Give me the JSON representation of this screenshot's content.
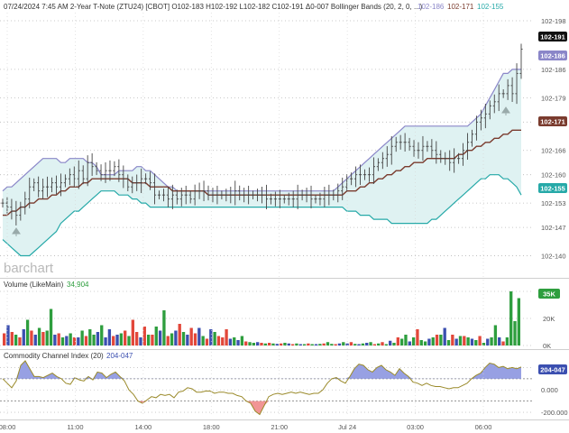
{
  "header": {
    "text": "07/24/2024 7:45 AM 2-Year T-Note (ZTU24) [CBOT] O102-183 H102-192 L102-182 C102-191 Δ0-007 Bollinger Bands (20, 2, 0, ...)",
    "upper_value": "102-186",
    "middle_value": "102-171",
    "lower_value": "102-155"
  },
  "watermark": "barchart",
  "colors": {
    "bb_upper": "#8a86c8",
    "bb_middle": "#7a3b2e",
    "bb_lower": "#26a9a8",
    "bb_fill": "#dff2f2",
    "price": "#444444",
    "vol_up": "#2e9e3e",
    "vol_down": "#e2473a",
    "vol_neutral": "#3b4fb0",
    "cci_line": "#9a8a2a",
    "cci_pos_fill": "#8c96e0",
    "cci_neg_fill": "#f08a8a",
    "price_badge": "#111111",
    "upper_badge": "#8a86c8",
    "middle_badge": "#7a3b2e",
    "lower_badge": "#26a9a8",
    "volume_badge": "#2e9e3e",
    "cci_badge": "#3b4fb0"
  },
  "chart_data": [
    {
      "panel": "price",
      "type": "ohlc-with-bollinger",
      "y_ticks": [
        "102-198",
        "102-186",
        "102-179",
        "102-173",
        "102-166",
        "102-160",
        "102-153",
        "102-147",
        "102-140"
      ],
      "y_tick_values": [
        102.198,
        102.186,
        102.179,
        102.173,
        102.166,
        102.16,
        102.153,
        102.147,
        102.14
      ],
      "ylim": [
        102.135,
        102.2
      ],
      "x_ticks": [
        "08:00",
        "11:00",
        "14:00",
        "18:00",
        "21:00",
        "Jul 24",
        "03:00",
        "06:00"
      ],
      "badges": {
        "last": "102-191",
        "upper": "102-186",
        "middle": "102-171",
        "lower": "102-155"
      },
      "close": [
        102.153,
        102.152,
        102.151,
        102.15,
        102.152,
        102.154,
        102.157,
        102.158,
        102.156,
        102.157,
        102.157,
        102.158,
        102.157,
        102.158,
        102.159,
        102.16,
        102.159,
        102.161,
        102.159,
        102.163,
        102.162,
        102.161,
        102.16,
        102.161,
        102.161,
        102.162,
        102.16,
        102.159,
        102.157,
        102.158,
        102.158,
        102.159,
        102.159,
        102.158,
        102.155,
        102.155,
        102.155,
        102.154,
        102.155,
        102.154,
        102.155,
        102.155,
        102.154,
        102.156,
        102.156,
        102.156,
        102.155,
        102.155,
        102.155,
        102.155,
        102.155,
        102.155,
        102.156,
        102.155,
        102.155,
        102.155,
        102.155,
        102.155,
        102.155,
        102.154,
        102.154,
        102.154,
        102.154,
        102.154,
        102.154,
        102.154,
        102.155,
        102.155,
        102.155,
        102.154,
        102.154,
        102.154,
        102.155,
        102.155,
        102.155,
        102.156,
        102.157,
        102.159,
        102.159,
        102.16,
        102.16,
        102.16,
        102.16,
        102.162,
        102.163,
        102.164,
        102.165,
        102.167,
        102.168,
        102.168,
        102.168,
        102.167,
        102.166,
        102.166,
        102.167,
        102.167,
        102.166,
        102.165,
        102.164,
        102.164,
        102.163,
        102.164,
        102.164,
        102.166,
        102.168,
        102.17,
        102.173,
        102.174,
        102.175,
        102.177,
        102.178,
        102.18,
        102.18,
        102.182,
        102.18,
        102.185,
        102.191
      ],
      "bb_upper": [
        102.156,
        102.157,
        102.157,
        102.158,
        102.159,
        102.16,
        102.161,
        102.162,
        102.163,
        102.164,
        102.164,
        102.164,
        102.164,
        102.163,
        102.163,
        102.164,
        102.164,
        102.164,
        102.164,
        102.163,
        102.163,
        102.162,
        102.16,
        102.16,
        102.16,
        102.16,
        102.161,
        102.161,
        102.161,
        102.161,
        102.162,
        102.162,
        102.161,
        102.161,
        102.16,
        102.159,
        102.158,
        102.157,
        102.157,
        102.156,
        102.156,
        102.156,
        102.156,
        102.156,
        102.156,
        102.156,
        102.156,
        102.156,
        102.156,
        102.156,
        102.156,
        102.156,
        102.156,
        102.156,
        102.156,
        102.156,
        102.156,
        102.156,
        102.156,
        102.156,
        102.156,
        102.156,
        102.156,
        102.156,
        102.156,
        102.156,
        102.156,
        102.156,
        102.156,
        102.156,
        102.156,
        102.156,
        102.156,
        102.156,
        102.156,
        102.157,
        102.158,
        102.159,
        102.16,
        102.161,
        102.162,
        102.163,
        102.164,
        102.165,
        102.166,
        102.167,
        102.168,
        102.169,
        102.17,
        102.171,
        102.172,
        102.172,
        102.172,
        102.172,
        102.172,
        102.172,
        102.172,
        102.172,
        102.172,
        102.172,
        102.172,
        102.172,
        102.172,
        102.172,
        102.172,
        102.173,
        102.174,
        102.175,
        102.177,
        102.179,
        102.181,
        102.183,
        102.185,
        102.185,
        102.186,
        102.186,
        102.186
      ],
      "bb_middle": [
        102.15,
        102.15,
        102.151,
        102.151,
        102.152,
        102.152,
        102.153,
        102.153,
        102.154,
        102.154,
        102.154,
        102.155,
        102.155,
        102.156,
        102.156,
        102.157,
        102.157,
        102.157,
        102.158,
        102.158,
        102.159,
        102.159,
        102.159,
        102.159,
        102.159,
        102.159,
        102.159,
        102.159,
        102.159,
        102.158,
        102.158,
        102.158,
        102.158,
        102.157,
        102.157,
        102.157,
        102.157,
        102.157,
        102.156,
        102.156,
        102.156,
        102.156,
        102.156,
        102.156,
        102.156,
        102.156,
        102.155,
        102.155,
        102.155,
        102.155,
        102.155,
        102.155,
        102.155,
        102.155,
        102.155,
        102.155,
        102.155,
        102.155,
        102.155,
        102.155,
        102.155,
        102.155,
        102.155,
        102.155,
        102.155,
        102.155,
        102.155,
        102.155,
        102.155,
        102.155,
        102.155,
        102.155,
        102.155,
        102.155,
        102.155,
        102.155,
        102.155,
        102.156,
        102.156,
        102.156,
        102.157,
        102.157,
        102.158,
        102.158,
        102.159,
        102.159,
        102.16,
        102.16,
        102.161,
        102.161,
        102.162,
        102.162,
        102.163,
        102.163,
        102.163,
        102.164,
        102.164,
        102.164,
        102.164,
        102.164,
        102.164,
        102.164,
        102.165,
        102.165,
        102.166,
        102.166,
        102.167,
        102.167,
        102.168,
        102.168,
        102.169,
        102.169,
        102.17,
        102.17,
        102.171,
        102.171,
        102.171
      ],
      "bb_lower": [
        102.144,
        102.143,
        102.142,
        102.141,
        102.14,
        102.14,
        102.14,
        102.141,
        102.142,
        102.143,
        102.144,
        102.145,
        102.146,
        102.148,
        102.149,
        102.15,
        102.151,
        102.151,
        102.152,
        102.153,
        102.154,
        102.155,
        102.156,
        102.156,
        102.156,
        102.156,
        102.155,
        102.155,
        102.155,
        102.154,
        102.154,
        102.153,
        102.153,
        102.152,
        102.152,
        102.152,
        102.152,
        102.152,
        102.152,
        102.152,
        102.152,
        102.152,
        102.152,
        102.152,
        102.152,
        102.152,
        102.152,
        102.152,
        102.152,
        102.152,
        102.152,
        102.152,
        102.152,
        102.152,
        102.152,
        102.152,
        102.152,
        102.152,
        102.152,
        102.152,
        102.152,
        102.152,
        102.152,
        102.152,
        102.152,
        102.152,
        102.152,
        102.152,
        102.152,
        102.152,
        102.152,
        102.152,
        102.152,
        102.152,
        102.152,
        102.152,
        102.152,
        102.151,
        102.151,
        102.151,
        102.15,
        102.15,
        102.15,
        102.149,
        102.149,
        102.149,
        102.149,
        102.148,
        102.148,
        102.148,
        102.148,
        102.148,
        102.148,
        102.148,
        102.148,
        102.148,
        102.149,
        102.149,
        102.15,
        102.151,
        102.152,
        102.153,
        102.154,
        102.155,
        102.156,
        102.157,
        102.158,
        102.159,
        102.159,
        102.16,
        102.16,
        102.16,
        102.159,
        102.159,
        102.158,
        102.157,
        102.155
      ]
    },
    {
      "panel": "volume",
      "type": "bar",
      "title": "Volume (LikeMain)",
      "title_value": "34,904",
      "y_ticks": [
        "40K",
        "20K",
        "0K"
      ],
      "y_tick_values": [
        40000,
        20000,
        0
      ],
      "ylim": [
        0,
        42000
      ],
      "badge": "35K",
      "values": [
        9000,
        15000,
        10000,
        8000,
        6000,
        12000,
        19000,
        11000,
        8000,
        13000,
        10000,
        11000,
        27000,
        8000,
        9000,
        6000,
        7000,
        9000,
        6000,
        6000,
        11000,
        7000,
        12000,
        8000,
        10000,
        15000,
        6000,
        12000,
        7000,
        8000,
        9000,
        11000,
        7000,
        19000,
        10000,
        6000,
        14000,
        8000,
        8000,
        14000,
        11000,
        26000,
        7000,
        9000,
        11000,
        16000,
        10000,
        8000,
        13000,
        9000,
        13000,
        7000,
        5000,
        12000,
        10000,
        7000,
        6000,
        12000,
        5000,
        6000,
        4000,
        7000,
        3000,
        2500,
        2000,
        2500,
        2000,
        1500,
        2000,
        1500,
        1200,
        1500,
        2000,
        1500,
        1000,
        1500,
        1000,
        1000,
        1500,
        1000,
        1000,
        1200,
        1500,
        2500,
        1200,
        1000,
        1500,
        2500,
        1500,
        2500,
        1200,
        1000,
        1500,
        2000,
        2500,
        1000,
        1500,
        2500,
        1000,
        3500,
        2000,
        6000,
        5000,
        8000,
        3000,
        6000,
        12000,
        4000,
        3000,
        5000,
        6000,
        8000,
        8000,
        13000,
        4000,
        8000,
        5000,
        7000,
        7000,
        6000,
        5000,
        4000,
        7000,
        2000,
        5000,
        6000,
        15000,
        6000,
        3000,
        6000,
        40000,
        18000,
        35000
      ],
      "value_colors": [
        "down",
        "neutral",
        "down",
        "up",
        "down",
        "neutral",
        "up",
        "down",
        "neutral",
        "up",
        "down",
        "up",
        "up",
        "neutral",
        "down",
        "up",
        "neutral",
        "up",
        "down",
        "neutral",
        "up",
        "down",
        "up",
        "up",
        "neutral",
        "up",
        "neutral",
        "neutral",
        "down",
        "neutral",
        "up",
        "down",
        "up",
        "down",
        "down",
        "neutral",
        "down",
        "up",
        "down",
        "up",
        "neutral",
        "up",
        "down",
        "up",
        "neutral",
        "down",
        "up",
        "neutral",
        "down",
        "down",
        "neutral",
        "up",
        "down",
        "neutral",
        "up",
        "down",
        "down",
        "down",
        "neutral",
        "up",
        "neutral",
        "up",
        "down",
        "up",
        "up",
        "neutral",
        "down",
        "up",
        "down",
        "up",
        "neutral",
        "down",
        "up",
        "neutral",
        "down",
        "up",
        "neutral",
        "up",
        "down",
        "up",
        "neutral",
        "up",
        "down",
        "up",
        "up",
        "down",
        "neutral",
        "up",
        "neutral",
        "down",
        "up",
        "neutral",
        "up",
        "neutral",
        "up",
        "down",
        "up",
        "down",
        "up",
        "neutral",
        "up",
        "down",
        "up",
        "up",
        "neutral",
        "up",
        "down",
        "up",
        "up",
        "neutral",
        "up",
        "down",
        "up",
        "neutral",
        "up",
        "down",
        "neutral",
        "up",
        "down",
        "up",
        "neutral",
        "up",
        "down",
        "up",
        "neutral",
        "up",
        "up",
        "neutral",
        "down",
        "up",
        "up",
        "up",
        "up"
      ]
    },
    {
      "panel": "cci",
      "type": "area",
      "title": "Commodity Channel Index (20)",
      "title_value": "204-047",
      "y_ticks": [
        "200",
        "0.000",
        "-200.000"
      ],
      "y_tick_values": [
        200,
        0,
        -200
      ],
      "ylim": [
        -240,
        260
      ],
      "badge": "204-047",
      "values": [
        100,
        60,
        20,
        80,
        220,
        260,
        190,
        120,
        120,
        110,
        130,
        150,
        120,
        100,
        60,
        50,
        110,
        90,
        80,
        120,
        90,
        160,
        150,
        110,
        140,
        160,
        120,
        80,
        0,
        -40,
        -100,
        -120,
        -90,
        -60,
        -70,
        -40,
        -50,
        -40,
        -70,
        -20,
        -10,
        20,
        10,
        -20,
        -20,
        -10,
        -10,
        -30,
        -20,
        -20,
        -30,
        -30,
        -50,
        -60,
        -100,
        -120,
        -190,
        -220,
        -140,
        -60,
        -40,
        -30,
        -40,
        -30,
        -20,
        -30,
        -20,
        -30,
        -40,
        -30,
        -30,
        0,
        60,
        100,
        110,
        80,
        60,
        120,
        190,
        230,
        220,
        180,
        160,
        200,
        220,
        180,
        160,
        130,
        190,
        150,
        120,
        70,
        60,
        40,
        60,
        40,
        30,
        30,
        20,
        10,
        20,
        20,
        40,
        60,
        100,
        130,
        150,
        200,
        240,
        230,
        200,
        210,
        190,
        200,
        190,
        204
      ],
      "reference_lines": [
        100,
        -100
      ]
    }
  ]
}
